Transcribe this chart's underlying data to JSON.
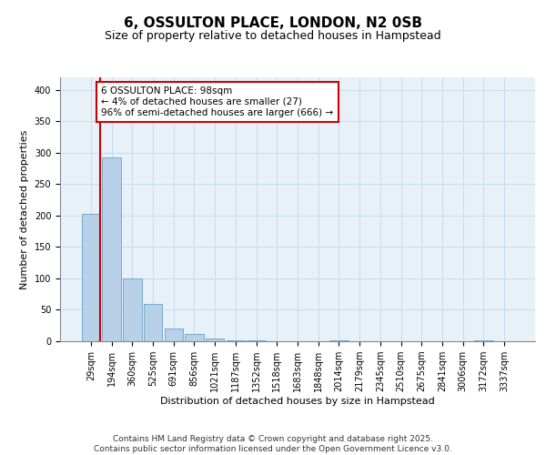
{
  "title1": "6, OSSULTON PLACE, LONDON, N2 0SB",
  "title2": "Size of property relative to detached houses in Hampstead",
  "xlabel": "Distribution of detached houses by size in Hampstead",
  "ylabel": "Number of detached properties",
  "categories": [
    "29sqm",
    "194sqm",
    "360sqm",
    "525sqm",
    "691sqm",
    "856sqm",
    "1021sqm",
    "1187sqm",
    "1352sqm",
    "1518sqm",
    "1683sqm",
    "1848sqm",
    "2014sqm",
    "2179sqm",
    "2345sqm",
    "2510sqm",
    "2675sqm",
    "2841sqm",
    "3006sqm",
    "3172sqm",
    "3337sqm"
  ],
  "values": [
    203,
    292,
    100,
    60,
    20,
    11,
    5,
    2,
    1,
    0,
    0,
    0,
    1,
    0,
    0,
    0,
    0,
    0,
    0,
    1,
    0
  ],
  "bar_color": "#b8d0e8",
  "bar_edge_color": "#6a9fc8",
  "annotation_text": "6 OSSULTON PLACE: 98sqm\n← 4% of detached houses are smaller (27)\n96% of semi-detached houses are larger (666) →",
  "annotation_box_color": "#ffffff",
  "annotation_border_color": "#cc0000",
  "vline_color": "#cc0000",
  "ylim": [
    0,
    420
  ],
  "yticks": [
    0,
    50,
    100,
    150,
    200,
    250,
    300,
    350,
    400
  ],
  "grid_color": "#c8dced",
  "bg_color": "#e8f0f8",
  "footer": "Contains HM Land Registry data © Crown copyright and database right 2025.\nContains public sector information licensed under the Open Government Licence v3.0.",
  "title1_fontsize": 11,
  "title2_fontsize": 9,
  "annotation_fontsize": 7.5,
  "footer_fontsize": 6.5,
  "tick_fontsize": 7,
  "axis_label_fontsize": 8
}
